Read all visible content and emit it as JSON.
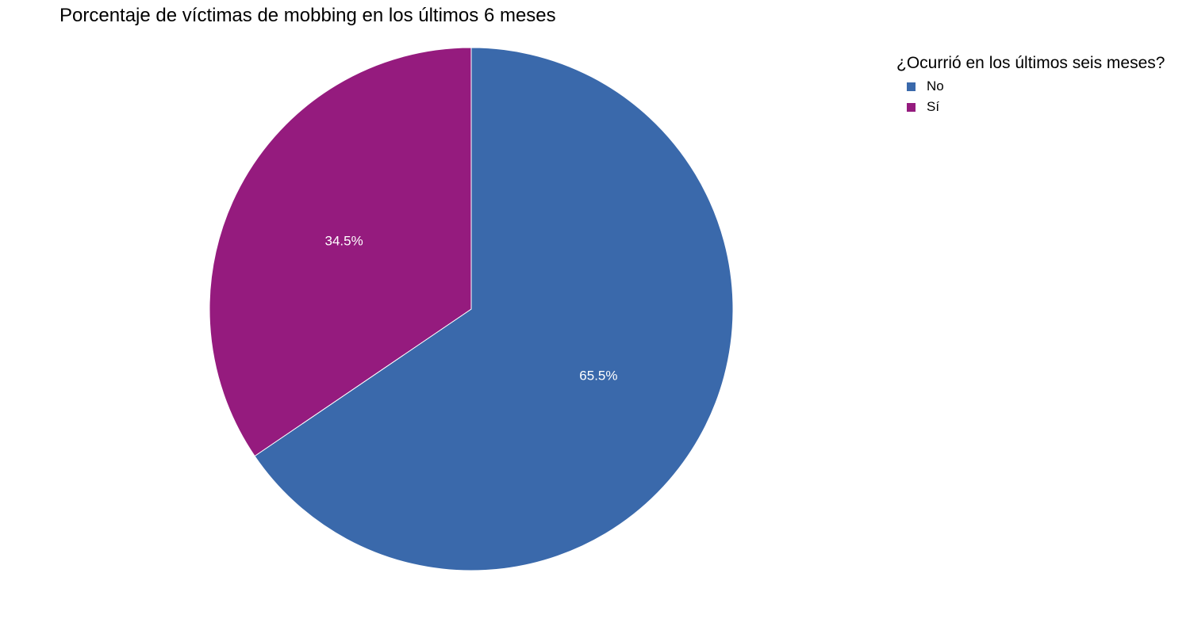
{
  "chart_data": {
    "type": "pie",
    "title": "Porcentaje de víctimas de mobbing en los últimos 6 meses",
    "legend": {
      "title": "¿Ocurrió en los últimos seis meses?",
      "placement": "top-right"
    },
    "slices": [
      {
        "name": "No",
        "value": 65.5,
        "label": "65.5%",
        "color": "#3a69ab"
      },
      {
        "name": "Sí",
        "value": 34.5,
        "label": "34.5%",
        "color": "#951b7e"
      }
    ]
  }
}
